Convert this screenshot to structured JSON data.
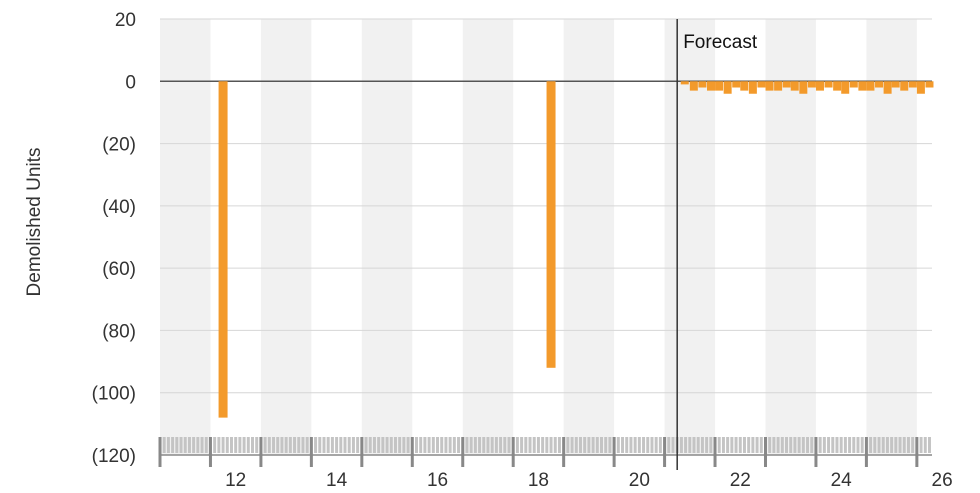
{
  "chart_data": {
    "type": "bar",
    "title": "",
    "xlabel": "",
    "ylabel": "Demolished Units",
    "xlim": [
      10.5,
      25.8
    ],
    "ylim": [
      -120,
      20
    ],
    "y_ticks": [
      20,
      0,
      -20,
      -40,
      -60,
      -80,
      -100,
      -120
    ],
    "y_tick_labels": [
      "20",
      "0",
      "(20)",
      "(40)",
      "(60)",
      "(80)",
      "(100)",
      "(120)"
    ],
    "x_ticks": [
      12,
      14,
      16,
      18,
      20,
      22,
      24,
      26
    ],
    "x_tick_labels": [
      "12",
      "14",
      "16",
      "18",
      "20",
      "22",
      "24",
      "26"
    ],
    "forecast_start": 20.75,
    "forecast_label": "Forecast",
    "grid": "horizontal",
    "alternating_year_bands": true,
    "bar_color": "#f39a2b",
    "series": [
      {
        "x": [
          11.75,
          18.25,
          20.9,
          21.08,
          21.25,
          21.42,
          21.58,
          21.75,
          21.92,
          22.08,
          22.25,
          22.42,
          22.58,
          22.75,
          22.92,
          23.08,
          23.25,
          23.42,
          23.58,
          23.75,
          23.92,
          24.08,
          24.25,
          24.42,
          24.58,
          24.75,
          24.92,
          25.08,
          25.25,
          25.42,
          25.58,
          25.75
        ],
        "values": [
          -108,
          -92,
          -1,
          -3,
          -2,
          -3,
          -3,
          -4,
          -2,
          -3,
          -4,
          -2,
          -3,
          -3,
          -2,
          -3,
          -4,
          -2,
          -3,
          -2,
          -3,
          -4,
          -2,
          -3,
          -3,
          -2,
          -4,
          -2,
          -3,
          -2,
          -4,
          -2
        ]
      }
    ]
  }
}
